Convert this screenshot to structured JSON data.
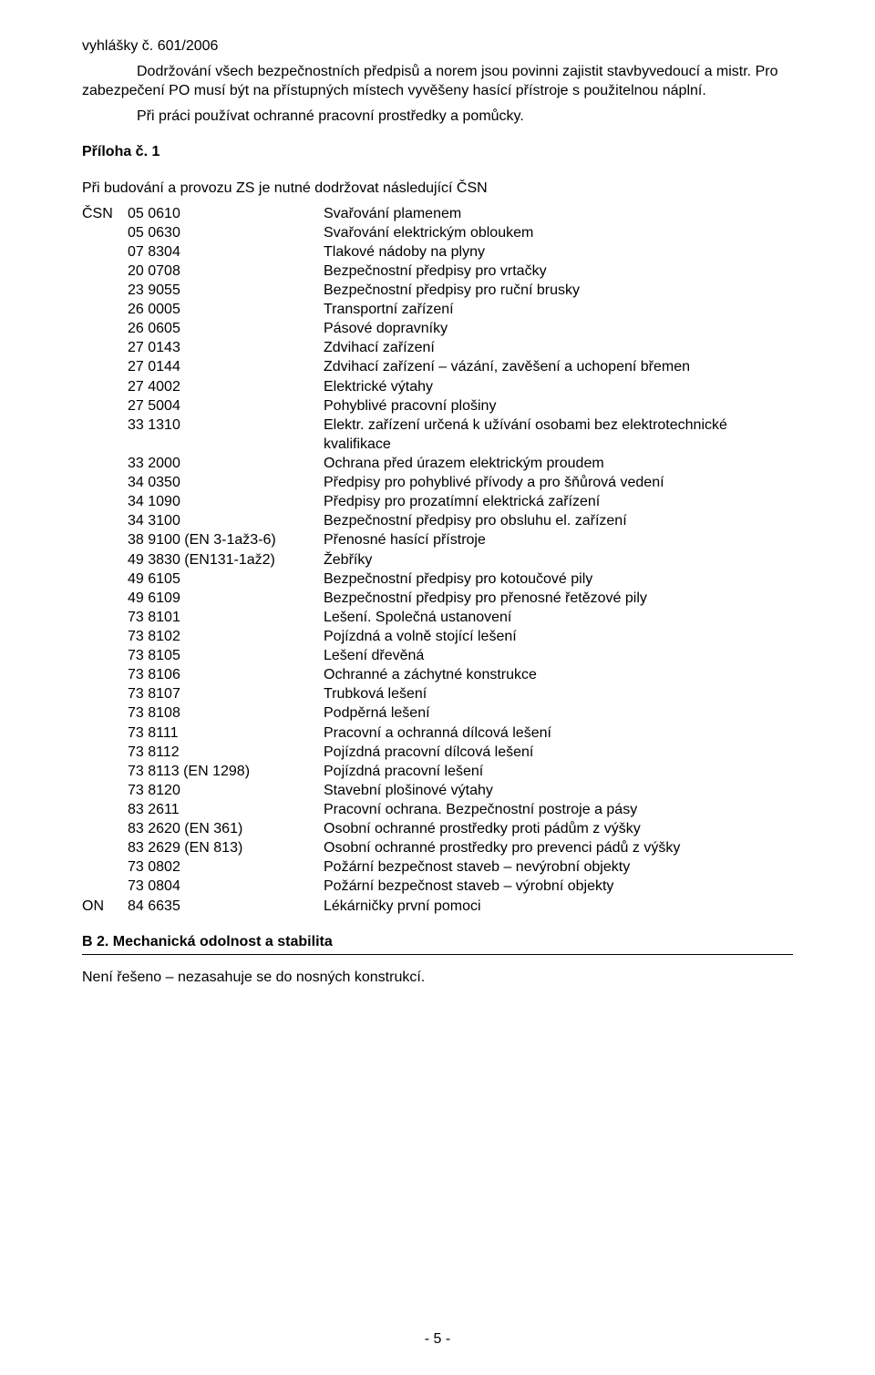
{
  "intro": {
    "line1": "vyhlášky č. 601/2006",
    "line2": "Dodržování všech bezpečnostních předpisů a norem jsou povinni zajistit stavbyvedoucí a mistr. Pro zabezpečení PO musí být na přístupných místech vyvěšeny hasící přístroje s použitelnou náplní.",
    "line3": "Při práci používat ochranné pracovní prostředky a pomůcky."
  },
  "priloha_heading": "Příloha č. 1",
  "csn_intro": "Při budování a provozu ZS je nutné dodržovat následující ČSN",
  "csn_prefix": "ČSN",
  "on_prefix": "ON",
  "csn_rows": [
    {
      "code": "05 0610",
      "desc": "Svařování plamenem"
    },
    {
      "code": "05 0630",
      "desc": "Svařování elektrickým obloukem"
    },
    {
      "code": "07 8304",
      "desc": "Tlakové nádoby na plyny"
    },
    {
      "code": "20 0708",
      "desc": "Bezpečnostní předpisy pro vrtačky"
    },
    {
      "code": "23 9055",
      "desc": "Bezpečnostní předpisy pro ruční brusky"
    },
    {
      "code": "26 0005",
      "desc": "Transportní zařízení"
    },
    {
      "code": "26 0605",
      "desc": "Pásové dopravníky"
    },
    {
      "code": "27 0143",
      "desc": "Zdvihací zařízení"
    },
    {
      "code": "27 0144",
      "desc": "Zdvihací zařízení – vázání, zavěšení a uchopení břemen"
    },
    {
      "code": "27 4002",
      "desc": "Elektrické výtahy"
    },
    {
      "code": "27 5004",
      "desc": "Pohyblivé pracovní plošiny"
    },
    {
      "code": "33 1310",
      "desc": "Elektr. zařízení určená k užívání osobami bez elektrotechnické kvalifikace"
    },
    {
      "code": "33 2000",
      "desc": "Ochrana před úrazem elektrickým proudem"
    },
    {
      "code": "34 0350",
      "desc": "Předpisy pro pohyblivé přívody a pro šňůrová vedení"
    },
    {
      "code": "34 1090",
      "desc": "Předpisy pro prozatímní elektrická zařízení"
    },
    {
      "code": "34 3100",
      "desc": "Bezpečnostní předpisy pro obsluhu el. zařízení"
    },
    {
      "code": "38 9100 (EN 3-1až3-6)",
      "desc": "Přenosné hasící přístroje"
    },
    {
      "code": "49 3830 (EN131-1až2)",
      "desc": "Žebříky"
    },
    {
      "code": "49 6105",
      "desc": "Bezpečnostní předpisy pro kotoučové pily"
    },
    {
      "code": "49 6109",
      "desc": "Bezpečnostní předpisy pro přenosné řetězové pily"
    },
    {
      "code": "73 8101",
      "desc": "Lešení. Společná ustanovení"
    },
    {
      "code": "73 8102",
      "desc": "Pojízdná a volně stojící lešení"
    },
    {
      "code": "73 8105",
      "desc": "Lešení dřevěná"
    },
    {
      "code": "73 8106",
      "desc": "Ochranné a záchytné konstrukce"
    },
    {
      "code": "73 8107",
      "desc": "Trubková lešení"
    },
    {
      "code": "73 8108",
      "desc": "Podpěrná lešení"
    },
    {
      "code": "73 8111",
      "desc": "Pracovní a ochranná dílcová lešení"
    },
    {
      "code": "73 8112",
      "desc": "Pojízdná pracovní dílcová lešení"
    },
    {
      "code": "73 8113 (EN 1298)",
      "desc": "Pojízdná pracovní lešení"
    },
    {
      "code": "73 8120",
      "desc": "Stavební plošinové výtahy"
    },
    {
      "code": "83 2611",
      "desc": "Pracovní ochrana. Bezpečnostní postroje a pásy"
    },
    {
      "code": "83 2620 (EN 361)",
      "desc": "Osobní ochranné prostředky proti pádům z výšky"
    },
    {
      "code": "83 2629 (EN 813)",
      "desc": "Osobní ochranné prostředky pro prevenci pádů z výšky"
    },
    {
      "code": "73 0802",
      "desc": "Požární bezpečnost staveb – nevýrobní objekty"
    },
    {
      "code": "73 0804",
      "desc": "Požární bezpečnost staveb – výrobní objekty"
    }
  ],
  "on_row": {
    "code": "84 6635",
    "desc": "Lékárničky první pomoci"
  },
  "b2_heading": "B 2. Mechanická odolnost a stabilita",
  "b2_text": "Není řešeno – nezasahuje se do nosných konstrukcí.",
  "page_number": "- 5 -"
}
